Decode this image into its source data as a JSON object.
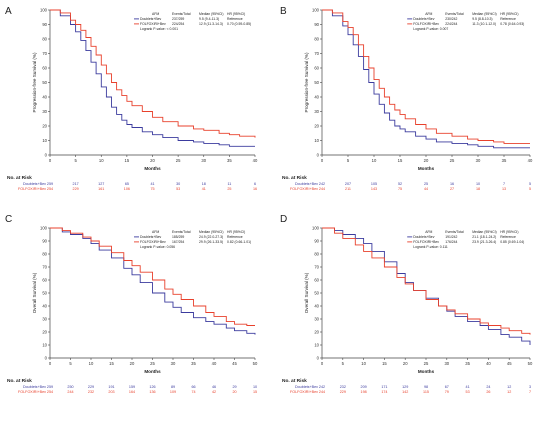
{
  "colors": {
    "doublets": "#3b3b9e",
    "folfoxiri": "#e8412c"
  },
  "chart_data": [
    {
      "type": "line",
      "panel": "A",
      "ylabel": "Progression-free Survival (%)",
      "xlabel": "Months",
      "xlim": [
        0,
        40
      ],
      "ylim": [
        0,
        100
      ],
      "xticks": [
        0,
        5,
        10,
        15,
        20,
        25,
        30,
        35,
        40
      ],
      "yticks": [
        0,
        10,
        20,
        30,
        40,
        50,
        60,
        70,
        80,
        90,
        100
      ],
      "legend": {
        "headers": [
          "AFM",
          "Events/Total",
          "Median (95%CI)",
          "HR (95%CI)"
        ],
        "rows": [
          [
            "Doublets+Bev",
            "237/259",
            "9.5 (9.4-11.3)",
            "Reference"
          ],
          [
            "FOLFOXIRI+Bev",
            "224/254",
            "12.9 (11.3-14.3)",
            "0.70 (0.59-0.85)"
          ]
        ],
        "logrank": "Logrank P-value: < 0.001"
      },
      "series": [
        {
          "name": "Doublets+Bev",
          "x": [
            0,
            2,
            4,
            5,
            6,
            7,
            8,
            9,
            10,
            11,
            12,
            13,
            14,
            15,
            16,
            18,
            20,
            22,
            25,
            28,
            30,
            33,
            35,
            37,
            40
          ],
          "y": [
            100,
            96,
            90,
            85,
            79,
            72,
            64,
            56,
            47,
            40,
            33,
            28,
            24,
            21,
            19,
            16,
            14,
            12,
            10,
            9,
            8,
            7,
            6,
            6,
            6
          ]
        },
        {
          "name": "FOLFOXIRI+Bev",
          "x": [
            0,
            2,
            4,
            5,
            6,
            7,
            8,
            9,
            10,
            11,
            12,
            13,
            14,
            15,
            16,
            18,
            20,
            22,
            25,
            28,
            30,
            33,
            35,
            37,
            40
          ],
          "y": [
            100,
            98,
            93,
            90,
            86,
            81,
            75,
            69,
            62,
            56,
            50,
            45,
            41,
            37,
            34,
            30,
            26,
            23,
            20,
            18,
            17,
            15,
            14,
            13,
            12
          ]
        }
      ],
      "risk": {
        "title": "No. at Risk",
        "rows": [
          {
            "label": "Doublets+Bev",
            "values": [
              "259",
              "217",
              "127",
              "65",
              "41",
              "30",
              "18",
              "11",
              "6"
            ]
          },
          {
            "label": "FOLFOXIRI+Bev",
            "values": [
              "254",
              "229",
              "161",
              "106",
              "75",
              "53",
              "41",
              "25",
              "16"
            ]
          }
        ]
      }
    },
    {
      "type": "line",
      "panel": "B",
      "ylabel": "Progression-free Survival (%)",
      "xlabel": "Months",
      "xlim": [
        0,
        40
      ],
      "ylim": [
        0,
        100
      ],
      "xticks": [
        0,
        5,
        10,
        15,
        20,
        25,
        30,
        35,
        40
      ],
      "yticks": [
        0,
        10,
        20,
        30,
        40,
        50,
        60,
        70,
        80,
        90,
        100
      ],
      "legend": {
        "headers": [
          "AFM",
          "Events/Total",
          "Median (95%CI)",
          "HR (95%CI)"
        ],
        "rows": [
          [
            "Doublets+Bev",
            "230/242",
            "9.5 (8.8-10.3)",
            "Reference"
          ],
          [
            "FOLFOXIRI+Bev",
            "224/244",
            "11.3 (10.1-12.0)",
            "0.78 (0.64-0.93)"
          ]
        ],
        "logrank": "Logrank P-value: 0.007"
      },
      "series": [
        {
          "name": "Doublets+Bev",
          "x": [
            0,
            2,
            4,
            5,
            6,
            7,
            8,
            9,
            10,
            11,
            12,
            13,
            14,
            15,
            16,
            18,
            20,
            22,
            25,
            28,
            30,
            33,
            35,
            37,
            40
          ],
          "y": [
            100,
            96,
            89,
            83,
            76,
            68,
            59,
            50,
            42,
            35,
            29,
            24,
            20,
            18,
            16,
            13,
            11,
            9,
            8,
            7,
            6,
            5,
            5,
            5,
            5
          ]
        },
        {
          "name": "FOLFOXIRI+Bev",
          "x": [
            0,
            2,
            4,
            5,
            6,
            7,
            8,
            9,
            10,
            11,
            12,
            13,
            14,
            15,
            16,
            18,
            20,
            22,
            25,
            28,
            30,
            33,
            35,
            37,
            40
          ],
          "y": [
            100,
            98,
            92,
            88,
            83,
            76,
            68,
            60,
            52,
            46,
            40,
            35,
            31,
            28,
            25,
            21,
            18,
            15,
            13,
            11,
            10,
            9,
            8,
            8,
            8
          ]
        }
      ],
      "risk": {
        "title": "No. at Risk",
        "rows": [
          {
            "label": "Doublets+Bev",
            "values": [
              "242",
              "207",
              "105",
              "52",
              "25",
              "16",
              "10",
              "7",
              "5"
            ]
          },
          {
            "label": "FOLFOXIRI+Bev",
            "values": [
              "244",
              "211",
              "143",
              "75",
              "44",
              "27",
              "18",
              "13",
              "5"
            ]
          }
        ]
      }
    },
    {
      "type": "line",
      "panel": "C",
      "ylabel": "Overall Survival (%)",
      "xlabel": "Months",
      "xlim": [
        0,
        50
      ],
      "ylim": [
        0,
        100
      ],
      "xticks": [
        0,
        5,
        10,
        15,
        20,
        25,
        30,
        35,
        40,
        45,
        50
      ],
      "yticks": [
        0,
        10,
        20,
        30,
        40,
        50,
        60,
        70,
        80,
        90,
        100
      ],
      "legend": {
        "headers": [
          "AFM",
          "Events/Total",
          "Median (95%CI)",
          "HR (95%CI)"
        ],
        "rows": [
          [
            "Doublets+Bev",
            "185/259",
            "24.9 (22.0-27.3)",
            "Reference"
          ],
          [
            "FOLFOXIRI+Bev",
            "167/254",
            "29.9 (26.1-33.5)",
            "0.82 (0.66-1.01)"
          ]
        ],
        "logrank": "Logrank P-value: 0.056"
      },
      "series": [
        {
          "name": "Doublets+Bev",
          "x": [
            0,
            3,
            5,
            8,
            10,
            12,
            15,
            18,
            20,
            22,
            25,
            28,
            30,
            32,
            35,
            38,
            40,
            43,
            45,
            48,
            50
          ],
          "y": [
            100,
            97,
            95,
            92,
            88,
            83,
            77,
            69,
            64,
            58,
            50,
            43,
            39,
            35,
            31,
            28,
            26,
            23,
            21,
            19,
            18
          ]
        },
        {
          "name": "FOLFOXIRI+Bev",
          "x": [
            0,
            3,
            5,
            8,
            10,
            12,
            15,
            18,
            20,
            22,
            25,
            28,
            30,
            32,
            35,
            38,
            40,
            43,
            45,
            48,
            50
          ],
          "y": [
            100,
            98,
            96,
            93,
            90,
            86,
            81,
            75,
            71,
            66,
            60,
            53,
            49,
            45,
            40,
            35,
            32,
            28,
            26,
            25,
            25
          ]
        }
      ],
      "risk": {
        "title": "No. at Risk",
        "rows": [
          {
            "label": "Doublets+Bev",
            "values": [
              "259",
              "250",
              "229",
              "191",
              "159",
              "126",
              "89",
              "66",
              "46",
              "29",
              "10"
            ]
          },
          {
            "label": "FOLFOXIRI+Bev",
            "values": [
              "254",
              "244",
              "232",
              "203",
              "164",
              "136",
              "109",
              "74",
              "42",
              "20",
              "15"
            ]
          }
        ]
      }
    },
    {
      "type": "line",
      "panel": "D",
      "ylabel": "Overall Survival (%)",
      "xlabel": "Months",
      "xlim": [
        0,
        50
      ],
      "ylim": [
        0,
        100
      ],
      "xticks": [
        0,
        5,
        10,
        15,
        20,
        25,
        30,
        35,
        40,
        45,
        50
      ],
      "yticks": [
        0,
        10,
        20,
        30,
        40,
        50,
        60,
        70,
        80,
        90,
        100
      ],
      "legend": {
        "headers": [
          "AFM",
          "Events/Total",
          "Median (95%CI)",
          "HR (95%CI)"
        ],
        "rows": [
          [
            "Doublets+Bev",
            "191/242",
            "21.1 (18.1-24.2)",
            "Reference"
          ],
          [
            "FOLFOXIRI+Bev",
            "176/244",
            "23.9 (21.3-26.4)",
            "0.85 (0.69-1.04)"
          ]
        ],
        "logrank": "Logrank P-value: 0.111"
      },
      "series": [
        {
          "name": "Doublets+Bev",
          "x": [
            0,
            3,
            5,
            8,
            10,
            12,
            15,
            18,
            20,
            22,
            25,
            28,
            30,
            32,
            35,
            38,
            40,
            43,
            45,
            48,
            50
          ],
          "y": [
            100,
            98,
            95,
            92,
            88,
            82,
            74,
            65,
            58,
            52,
            46,
            40,
            36,
            32,
            28,
            25,
            22,
            18,
            16,
            13,
            10
          ]
        },
        {
          "name": "FOLFOXIRI+Bev",
          "x": [
            0,
            3,
            5,
            8,
            10,
            12,
            15,
            18,
            20,
            22,
            25,
            28,
            30,
            32,
            35,
            38,
            40,
            43,
            45,
            48,
            50
          ],
          "y": [
            100,
            96,
            92,
            87,
            82,
            77,
            70,
            62,
            57,
            52,
            45,
            40,
            37,
            34,
            30,
            27,
            25,
            23,
            21,
            19,
            18
          ]
        }
      ],
      "risk": {
        "title": "No. at Risk",
        "rows": [
          {
            "label": "Doublets+Bev",
            "values": [
              "242",
              "232",
              "209",
              "171",
              "129",
              "98",
              "67",
              "41",
              "24",
              "12",
              "3"
            ]
          },
          {
            "label": "FOLFOXIRI+Bev",
            "values": [
              "244",
              "229",
              "198",
              "174",
              "142",
              "115",
              "79",
              "53",
              "26",
              "12",
              "7"
            ]
          }
        ]
      }
    }
  ]
}
